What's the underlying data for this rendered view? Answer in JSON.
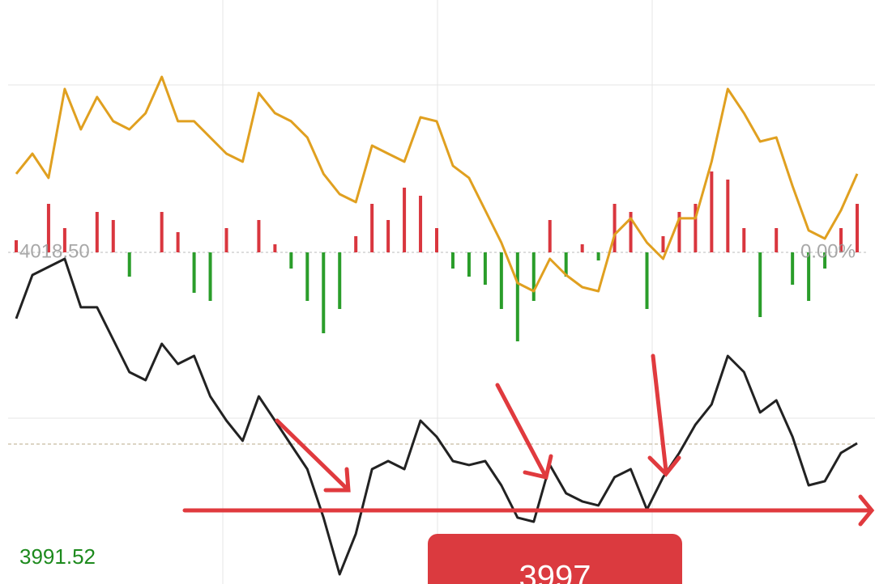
{
  "chart_data": {
    "type": "line",
    "ylim": [
      3989.23,
      4040.77
    ],
    "yticks": [
      {
        "value": 4018.5,
        "label": "4018.50"
      },
      {
        "value": 3991.52,
        "label": "3991.52"
      }
    ],
    "y2lim": [
      -0.728,
      0.554
    ],
    "y2ticks": [
      {
        "value": 0,
        "label": "0.00%"
      }
    ],
    "y3lim": [
      -410,
      312
    ],
    "series": [
      {
        "color": "#222222",
        "values": [
          4012.65,
          4016.5,
          4017.21,
          4017.93,
          4013.65,
          4013.65,
          4010.79,
          4007.93,
          4007.22,
          4010.43,
          4008.65,
          4009.36,
          4005.79,
          4003.65,
          4001.87,
          4005.79,
          4003.65,
          4001.51,
          3999.37,
          3995.09,
          3990.09,
          3993.66,
          3999.37,
          4000.08,
          3999.37,
          4003.65,
          4002.22,
          4000.08,
          3999.73,
          4000.08,
          3997.94,
          3995.09,
          3994.73,
          3999.73,
          3997.23,
          3996.52,
          3996.16,
          3998.66,
          3999.37,
          3995.8,
          3998.66,
          4000.8,
          4003.3,
          4005.08,
          4009.36,
          4007.93,
          4004.37,
          4005.44,
          4002.22,
          3997.94,
          3998.3,
          4000.8,
          4001.65
        ]
      },
      {
        "color": "#e0a020",
        "values": [
          4025.43,
          4027.21,
          4025.07,
          4032.92,
          4029.35,
          4032.21,
          4030.07,
          4029.35,
          4030.78,
          4033.99,
          4030.07,
          4030.07,
          4028.64,
          4027.21,
          4026.5,
          4032.56,
          4030.78,
          4030.07,
          4028.64,
          4025.43,
          4023.64,
          4022.93,
          4027.92,
          4027.21,
          4026.5,
          4030.42,
          4030.07,
          4026.14,
          4025.07,
          4022.21,
          4019.36,
          4015.79,
          4015.07,
          4017.93,
          4016.5,
          4015.43,
          4015.07,
          4020.07,
          4021.5,
          4019.36,
          4017.93,
          4021.5,
          4021.5,
          4026.5,
          4032.92,
          4030.78,
          4028.28,
          4028.64,
          4024.35,
          4020.43,
          4019.71,
          4022.21,
          4025.43
        ]
      },
      {
        "type": "bar",
        "axis": "y3",
        "up_color": "#d9363e",
        "down_color": "#2a9d2a",
        "values": [
          15,
          0,
          60,
          30,
          0,
          50,
          40,
          -30,
          0,
          50,
          25,
          -50,
          -60,
          30,
          0,
          40,
          10,
          -20,
          -60,
          -100,
          -70,
          20,
          60,
          40,
          80,
          70,
          30,
          -20,
          -30,
          -40,
          -70,
          -110,
          -60,
          40,
          -30,
          10,
          -10,
          60,
          50,
          -70,
          20,
          50,
          60,
          100,
          90,
          30,
          -80,
          30,
          -40,
          -60,
          -20,
          30,
          60
        ]
      }
    ],
    "annotations": [
      {
        "text": "3997"
      }
    ]
  }
}
